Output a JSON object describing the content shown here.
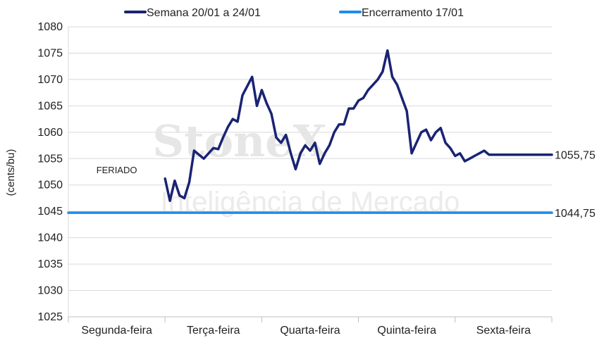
{
  "watermark": {
    "brand": "StoneX",
    "tagline": "Inteligência de Mercado"
  },
  "chart_data": {
    "type": "line",
    "ylabel": "(cents/bu)",
    "xlabel": "",
    "title": "",
    "ylim": [
      1025,
      1080
    ],
    "yticks": [
      1025,
      1030,
      1035,
      1040,
      1045,
      1050,
      1055,
      1060,
      1065,
      1070,
      1075,
      1080
    ],
    "categories": [
      "Segunda-feira",
      "Terça-feira",
      "Quarta-feira",
      "Quinta-feira",
      "Sexta-feira"
    ],
    "grid": true,
    "legend_position": "top",
    "annotations": [
      {
        "text": "FERIADO",
        "category": "Segunda-feira"
      }
    ],
    "series": [
      {
        "name": "Semana 20/01 a 24/01",
        "color": "#1a2373",
        "end_label": "1055,75",
        "x": [
          1.0,
          1.05,
          1.1,
          1.15,
          1.2,
          1.25,
          1.3,
          1.4,
          1.5,
          1.55,
          1.6,
          1.65,
          1.7,
          1.75,
          1.8,
          1.9,
          1.95,
          2.0,
          2.05,
          2.1,
          2.15,
          2.2,
          2.25,
          2.3,
          2.35,
          2.4,
          2.45,
          2.5,
          2.55,
          2.6,
          2.65,
          2.7,
          2.75,
          2.8,
          2.85,
          2.9,
          2.95,
          3.0,
          3.05,
          3.1,
          3.15,
          3.2,
          3.25,
          3.3,
          3.35,
          3.4,
          3.45,
          3.5,
          3.55,
          3.6,
          3.65,
          3.7,
          3.75,
          3.8,
          3.85,
          3.9,
          3.95,
          4.0,
          4.05,
          4.1,
          4.15,
          4.2,
          4.25,
          4.3,
          4.35,
          4.4,
          4.45,
          4.5,
          4.55,
          4.6,
          4.65,
          4.7,
          4.75,
          4.8,
          4.85,
          4.9,
          4.95,
          5.0
        ],
        "values": [
          1051.2,
          1047.0,
          1050.8,
          1048.0,
          1047.5,
          1050.5,
          1056.5,
          1055.0,
          1057.0,
          1056.8,
          1059.0,
          1061.0,
          1062.5,
          1062.0,
          1067.0,
          1070.5,
          1065.0,
          1068.0,
          1065.5,
          1063.5,
          1059.0,
          1058.0,
          1059.5,
          1056.0,
          1053.0,
          1056.0,
          1057.5,
          1056.5,
          1058.0,
          1054.0,
          1056.0,
          1057.5,
          1060.0,
          1061.5,
          1061.5,
          1064.5,
          1064.5,
          1066.0,
          1066.5,
          1068.0,
          1069.0,
          1070.0,
          1071.5,
          1075.5,
          1070.5,
          1069.0,
          1066.5,
          1064.0,
          1056.0,
          1058.0,
          1060.0,
          1060.5,
          1058.5,
          1060.0,
          1060.8,
          1058.0,
          1057.0,
          1055.5,
          1056.0,
          1054.5,
          1055.0,
          1055.5,
          1056.0,
          1056.5,
          1055.75,
          1055.75,
          1055.75,
          1055.75,
          1055.75,
          1055.75,
          1055.75,
          1055.75,
          1055.75,
          1055.75,
          1055.75,
          1055.75,
          1055.75,
          1055.75
        ]
      },
      {
        "name": "Encerramento 17/01",
        "color": "#1f8ceb",
        "end_label": "1044,75",
        "x": [
          0.0,
          5.0
        ],
        "values": [
          1044.75,
          1044.75
        ]
      }
    ]
  }
}
